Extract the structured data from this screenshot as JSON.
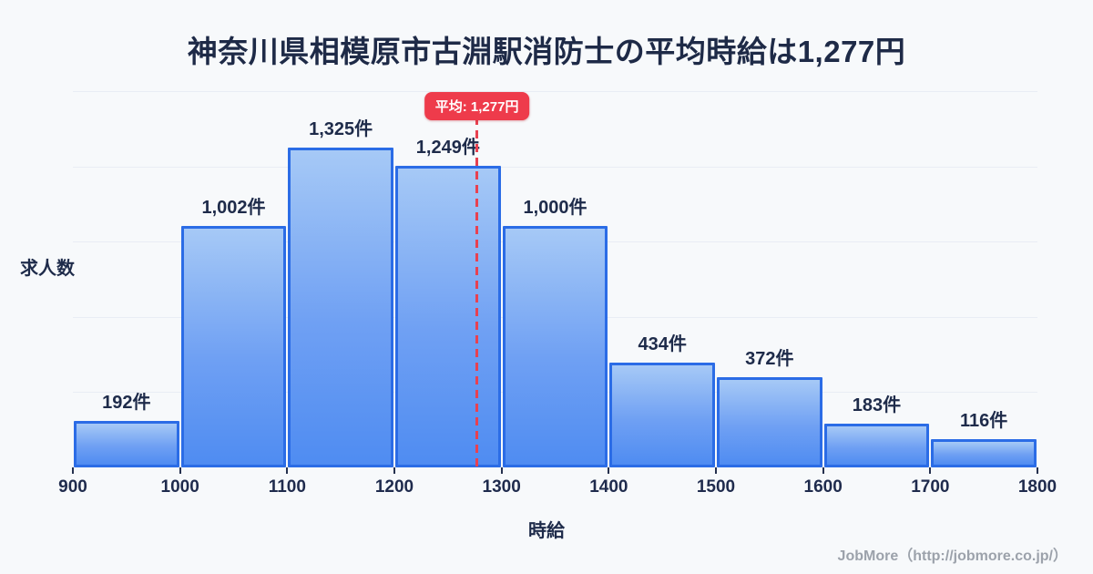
{
  "title": "神奈川県相模原市古淵駅消防士の平均時給は1,277円",
  "footer": "JobMore（http://jobmore.co.jp/）",
  "colors": {
    "background": "#f7f9fb",
    "title_text": "#1e2a47",
    "bar_fill_top": "#a6c9f6",
    "bar_fill_bottom": "#4f8cf2",
    "bar_border": "#2b6ce6",
    "average_red": "#ee3b4b",
    "gridline": "#e9edf4",
    "axis_text": "#1f2b4d",
    "footer_text": "#9ca2ab"
  },
  "chart_data": {
    "type": "bar",
    "title": "神奈川県相模原市古淵駅消防士の平均時給は1,277円",
    "xlabel": "時給",
    "ylabel": "求人数",
    "x_range": [
      900,
      1800
    ],
    "bin_width": 100,
    "x_ticks": [
      "900",
      "1000",
      "1100",
      "1200",
      "1300",
      "1400",
      "1500",
      "1600",
      "1700",
      "1800"
    ],
    "categories": [
      "900-1000",
      "1000-1100",
      "1100-1200",
      "1200-1300",
      "1300-1400",
      "1400-1500",
      "1500-1600",
      "1600-1700",
      "1700-1800"
    ],
    "values": [
      192,
      1002,
      1325,
      1249,
      1000,
      434,
      372,
      183,
      116
    ],
    "value_labels": [
      "192件",
      "1,002件",
      "1,325件",
      "1,249件",
      "1,000件",
      "434件",
      "372件",
      "183件",
      "116件"
    ],
    "average": {
      "value": 1277,
      "label": "平均: 1,277円"
    },
    "grid": true,
    "legend_position": "none",
    "ylim": [
      0,
      1404
    ]
  }
}
